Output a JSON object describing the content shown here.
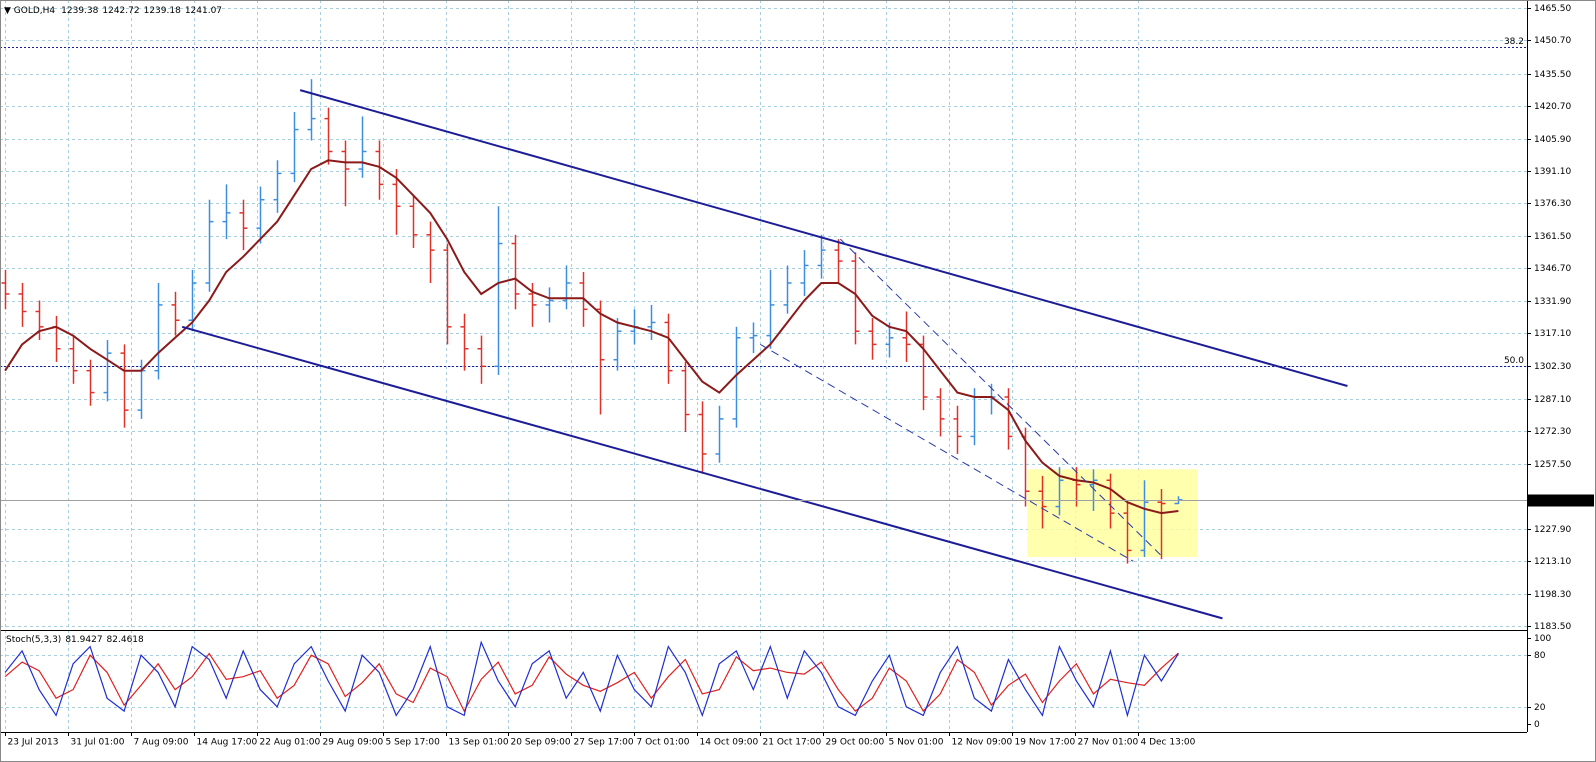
{
  "chart_data": {
    "type": "ohlc",
    "title": "GOLD,H4",
    "xlim": [
      -0.3,
      89.5
    ],
    "xticks": [
      {
        "value": 0,
        "label": "23 Jul 2013"
      },
      {
        "value": 3.7,
        "label": "31 Jul 01:00"
      },
      {
        "value": 7.4,
        "label": "7 Aug 09:00"
      },
      {
        "value": 11.1,
        "label": "14 Aug 17:00"
      },
      {
        "value": 14.8,
        "label": "22 Aug 01:00"
      },
      {
        "value": 18.5,
        "label": "29 Aug 09:00"
      },
      {
        "value": 22.2,
        "label": "5 Sep 17:00"
      },
      {
        "value": 25.9,
        "label": "13 Sep 01:00"
      },
      {
        "value": 29.6,
        "label": "20 Sep 09:00"
      },
      {
        "value": 33.3,
        "label": "27 Sep 17:00"
      },
      {
        "value": 37,
        "label": "7 Oct 01:00"
      },
      {
        "value": 40.7,
        "label": "14 Oct 09:00"
      },
      {
        "value": 44.4,
        "label": "21 Oct 17:00"
      },
      {
        "value": 48.1,
        "label": "29 Oct 00:00"
      },
      {
        "value": 51.8,
        "label": "5 Nov 01:00"
      },
      {
        "value": 55.5,
        "label": "12 Nov 09:00"
      },
      {
        "value": 59.2,
        "label": "19 Nov 17:00"
      },
      {
        "value": 62.9,
        "label": "27 Nov 01:00"
      },
      {
        "value": 66.6,
        "label": "4 Dec 13:00"
      }
    ],
    "ylim": [
      1182.6,
      1468.2
    ],
    "yticks": [
      {
        "value": 1465.5,
        "label": "1465.50"
      },
      {
        "value": 1450.7,
        "label": "1450.70"
      },
      {
        "value": 1435.5,
        "label": "1435.50"
      },
      {
        "value": 1420.7,
        "label": "1420.70"
      },
      {
        "value": 1405.9,
        "label": "1405.90"
      },
      {
        "value": 1391.1,
        "label": "1391.10"
      },
      {
        "value": 1376.3,
        "label": "1376.30"
      },
      {
        "value": 1361.5,
        "label": "1361.50"
      },
      {
        "value": 1346.7,
        "label": "1346.70"
      },
      {
        "value": 1331.9,
        "label": "1331.90"
      },
      {
        "value": 1317.1,
        "label": "1317.10"
      },
      {
        "value": 1302.3,
        "label": "1302.30"
      },
      {
        "value": 1287.1,
        "label": "1287.10"
      },
      {
        "value": 1272.3,
        "label": "1272.30"
      },
      {
        "value": 1257.5,
        "label": "1257.50"
      },
      {
        "value": 1227.9,
        "label": "1227.90"
      },
      {
        "value": 1213.1,
        "label": "1213.10"
      },
      {
        "value": 1198.3,
        "label": "1198.30"
      },
      {
        "value": 1183.5,
        "label": "1183.50"
      }
    ],
    "grid": true,
    "up_color": "#3c8fe0",
    "down_color": "#e03028",
    "open": [
      1340,
      1335,
      1327,
      1320,
      1310,
      1300,
      1290,
      1308,
      1282,
      1300,
      1330,
      1323,
      1340,
      1368,
      1372,
      1365,
      1378,
      1390,
      1410,
      1415,
      1400,
      1392,
      1400,
      1385,
      1375,
      1362,
      1355,
      1320,
      1310,
      1302,
      1358,
      1335,
      1330,
      1332,
      1340,
      1328,
      1305,
      1318,
      1320,
      1322,
      1300,
      1280,
      1262,
      1278,
      1315,
      1316,
      1330,
      1340,
      1348,
      1355,
      1350,
      1318,
      1312,
      1315,
      1312,
      1288,
      1278,
      1270,
      1288,
      1288,
      1270,
      1245,
      1238,
      1250,
      1248,
      1250,
      1235,
      1218,
      1240,
      1239.38
    ],
    "high": [
      1346,
      1340,
      1332,
      1325,
      1316,
      1305,
      1314,
      1312,
      1305,
      1340,
      1336,
      1346,
      1378,
      1385,
      1378,
      1384,
      1396,
      1418,
      1433,
      1420,
      1405,
      1416,
      1405,
      1392,
      1380,
      1368,
      1358,
      1326,
      1316,
      1375,
      1362,
      1340,
      1338,
      1348,
      1345,
      1332,
      1324,
      1328,
      1330,
      1326,
      1304,
      1286,
      1284,
      1320,
      1322,
      1346,
      1348,
      1355,
      1362,
      1360,
      1354,
      1324,
      1322,
      1327,
      1316,
      1292,
      1284,
      1292,
      1294,
      1292,
      1274,
      1252,
      1256,
      1256,
      1255,
      1253,
      1240,
      1250,
      1246,
      1242.72
    ],
    "low": [
      1328,
      1320,
      1314,
      1304,
      1294,
      1284,
      1286,
      1274,
      1278,
      1296,
      1316,
      1318,
      1336,
      1360,
      1355,
      1358,
      1372,
      1386,
      1405,
      1394,
      1375,
      1388,
      1378,
      1362,
      1356,
      1340,
      1312,
      1300,
      1294,
      1298,
      1328,
      1320,
      1322,
      1328,
      1320,
      1280,
      1300,
      1312,
      1314,
      1294,
      1272,
      1253,
      1258,
      1274,
      1308,
      1310,
      1326,
      1334,
      1342,
      1340,
      1312,
      1305,
      1306,
      1304,
      1282,
      1270,
      1262,
      1266,
      1280,
      1264,
      1238,
      1228,
      1234,
      1238,
      1236,
      1228,
      1212,
      1215,
      1214,
      1239.18
    ],
    "close": [
      1335,
      1327,
      1320,
      1310,
      1300,
      1290,
      1308,
      1282,
      1300,
      1330,
      1323,
      1340,
      1368,
      1372,
      1365,
      1378,
      1390,
      1410,
      1415,
      1400,
      1392,
      1400,
      1385,
      1375,
      1362,
      1355,
      1320,
      1310,
      1302,
      1358,
      1335,
      1330,
      1332,
      1340,
      1328,
      1305,
      1318,
      1320,
      1322,
      1300,
      1280,
      1262,
      1278,
      1315,
      1316,
      1330,
      1340,
      1348,
      1355,
      1350,
      1318,
      1312,
      1315,
      1312,
      1288,
      1278,
      1270,
      1288,
      1288,
      1270,
      1245,
      1238,
      1250,
      1248,
      1250,
      1235,
      1218,
      1240,
      1239.38,
      1241.07
    ],
    "moving_average": {
      "color": "#8b1a1a",
      "values": [
        1300,
        1312,
        1318,
        1320,
        1316,
        1310,
        1305,
        1300,
        1300,
        1308,
        1315,
        1322,
        1332,
        1345,
        1352,
        1360,
        1368,
        1380,
        1392,
        1396,
        1395,
        1395,
        1393,
        1388,
        1380,
        1372,
        1360,
        1345,
        1335,
        1340,
        1342,
        1336,
        1333,
        1333,
        1333,
        1326,
        1322,
        1320,
        1318,
        1315,
        1305,
        1295,
        1290,
        1298,
        1305,
        1312,
        1322,
        1332,
        1340,
        1340,
        1335,
        1325,
        1320,
        1318,
        1310,
        1300,
        1290,
        1288,
        1288,
        1282,
        1268,
        1258,
        1252,
        1250,
        1249,
        1246,
        1240,
        1237,
        1235,
        1236
      ]
    },
    "trendlines": [
      {
        "x": [
          17.35,
          78.94
        ],
        "y": [
          1428,
          1293
        ],
        "color": "#1c1c96",
        "dashed": false
      },
      {
        "x": [
          10.41,
          71.59
        ],
        "y": [
          1320,
          1187
        ],
        "color": "#1c1c96",
        "dashed": false
      },
      {
        "x": [
          44.41,
          66.35
        ],
        "y": [
          1312,
          1213
        ],
        "color": "#2a3aa8",
        "dashed": true
      },
      {
        "x": [
          49.12,
          67.94
        ],
        "y": [
          1360,
          1216
        ],
        "color": "#2a3aa8",
        "dashed": true
      }
    ],
    "levels": [
      {
        "label": "38.2",
        "value": 1447.7
      },
      {
        "label": "50.0",
        "value": 1302
      }
    ],
    "highlight": {
      "x": [
        60.12,
        70.12
      ],
      "y": [
        1215,
        1255
      ],
      "color": "#ffff99"
    },
    "stochastic": {
      "title": "Stoch(5,3,3)",
      "ylim": [
        -7,
        107
      ],
      "yticks": [
        100,
        80,
        20,
        0
      ],
      "main": {
        "color": "#1f2fd0",
        "values": [
          60,
          85,
          40,
          10,
          70,
          90,
          30,
          15,
          80,
          60,
          20,
          90,
          75,
          30,
          85,
          40,
          20,
          70,
          90,
          50,
          15,
          80,
          60,
          10,
          40,
          90,
          20,
          10,
          95,
          50,
          20,
          70,
          85,
          30,
          60,
          15,
          80,
          40,
          20,
          90,
          60,
          10,
          70,
          85,
          40,
          90,
          30,
          85,
          60,
          20,
          10,
          50,
          80,
          20,
          10,
          60,
          90,
          30,
          15,
          75,
          40,
          10,
          90,
          50,
          20,
          85,
          10,
          80,
          50,
          81.9427
        ]
      },
      "signal": {
        "color": "#e02020",
        "values": [
          55,
          72,
          62,
          30,
          40,
          80,
          60,
          22,
          45,
          70,
          40,
          55,
          82,
          52,
          55,
          62,
          30,
          45,
          80,
          70,
          32,
          48,
          70,
          35,
          25,
          65,
          55,
          15,
          52,
          72,
          35,
          45,
          78,
          58,
          45,
          38,
          48,
          60,
          30,
          55,
          75,
          35,
          40,
          78,
          62,
          65,
          60,
          58,
          72,
          40,
          15,
          30,
          65,
          50,
          15,
          35,
          75,
          60,
          22,
          45,
          58,
          25,
          50,
          70,
          35,
          52,
          48,
          45,
          65,
          82.4618
        ]
      }
    }
  }
}
